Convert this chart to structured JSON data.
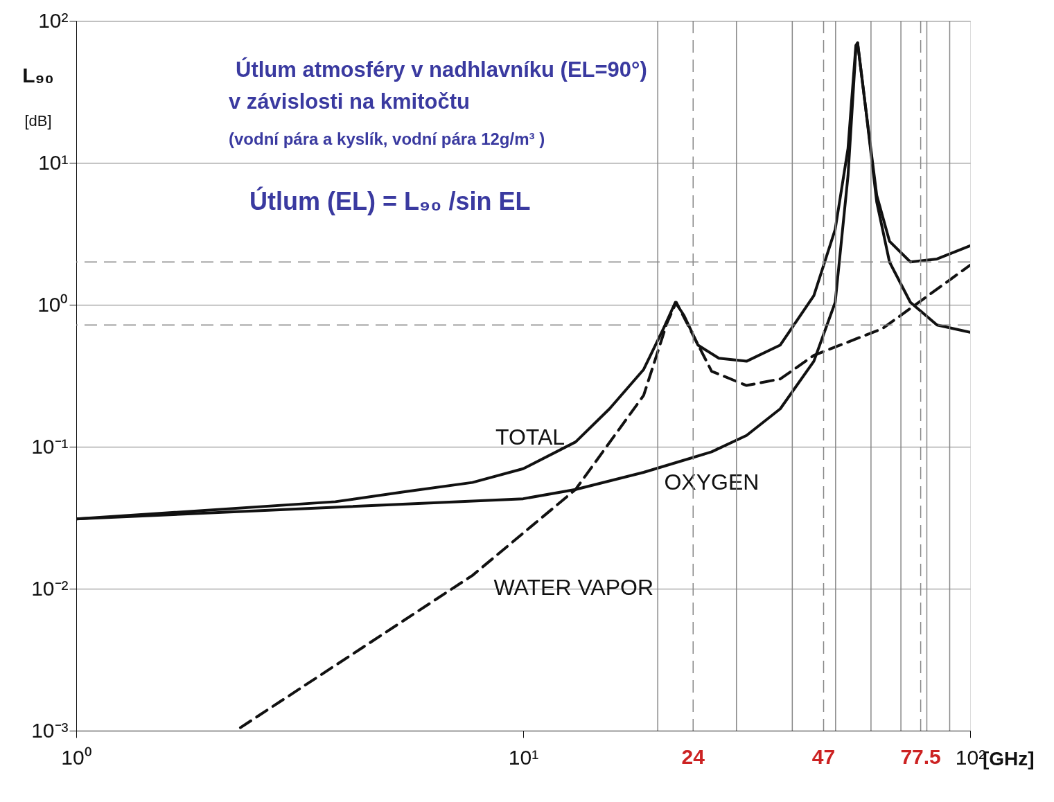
{
  "chart_data": {
    "type": "line",
    "title": "Útlum atmosféry v nadhlavníku (EL=90°) v závislosti na kmitočtu",
    "subtitle": "(vodní pára a kyslík, vodní pára 12g/m³ )",
    "xlabel": "[GHz]",
    "ylabel": "L₉₀ [dB]",
    "log": "xy",
    "grid": "y",
    "xlim": [
      1,
      100
    ],
    "ylim": [
      0.001,
      100
    ],
    "xticks": [
      {
        "value": 1,
        "label": "10⁰"
      },
      {
        "value": 10,
        "label": "10¹"
      },
      {
        "value": 100,
        "label": "10²"
      }
    ],
    "yticks": [
      {
        "value": 0.001,
        "label": "10⁻³"
      },
      {
        "value": 0.01,
        "label": "10⁻²"
      },
      {
        "value": 0.1,
        "label": "10⁻¹"
      },
      {
        "value": 1,
        "label": "10⁰"
      },
      {
        "value": 10,
        "label": "10¹"
      },
      {
        "value": 100,
        "label": "10²"
      }
    ],
    "series": [
      {
        "name": "OXYGEN",
        "color": "#111111",
        "line_style": "solid",
        "x": [
          1,
          10,
          13.1,
          18.6,
          26.4,
          31.6,
          37.6,
          44.7,
          49.9,
          53.3,
          55.5,
          56,
          58.4,
          61.8,
          66,
          73.5,
          84.3,
          100
        ],
        "values": [
          0.031,
          0.043,
          0.05,
          0.066,
          0.092,
          0.12,
          0.185,
          0.4,
          1.04,
          8.1,
          63,
          70,
          24,
          5.3,
          2.0,
          1.04,
          0.72,
          0.64
        ]
      },
      {
        "name": "TOTAL",
        "color": "#111111",
        "line_style": "solid",
        "x": [
          1,
          3.8,
          5.4,
          7.7,
          10,
          13.1,
          15.6,
          18.6,
          20.6,
          21.9,
          22.9,
          24.6,
          27.4,
          31.6,
          37.6,
          44.7,
          49.9,
          53.3,
          55.5,
          56,
          58.4,
          61.8,
          66,
          73.5,
          84.3,
          100
        ],
        "values": [
          0.031,
          0.041,
          0.048,
          0.056,
          0.07,
          0.108,
          0.185,
          0.35,
          0.68,
          1.04,
          0.84,
          0.52,
          0.42,
          0.4,
          0.52,
          1.16,
          3.4,
          12.6,
          67,
          70,
          24,
          5.9,
          2.8,
          2.0,
          2.1,
          2.6
        ]
      },
      {
        "name": "WATER VAPOR",
        "color": "#111111",
        "line_style": "dashed",
        "x": [
          2.33,
          7.7,
          13.1,
          18.6,
          21,
          22,
          26.4,
          31.6,
          37.6,
          44.7,
          63.7,
          100
        ],
        "values": [
          0.00105,
          0.0124,
          0.05,
          0.23,
          0.75,
          1.04,
          0.34,
          0.27,
          0.3,
          0.44,
          0.68,
          1.9
        ]
      }
    ],
    "ref_lines": [
      {
        "axis": "x",
        "value": 24,
        "label": "24",
        "line_style": "dashed"
      },
      {
        "axis": "x",
        "value": 47,
        "label": "47",
        "line_style": "dashed"
      },
      {
        "axis": "x",
        "value": 77.5,
        "label": "77.5",
        "line_style": "dashed"
      },
      {
        "axis": "x",
        "value": 20
      },
      {
        "axis": "x",
        "value": 30
      },
      {
        "axis": "x",
        "value": 40
      },
      {
        "axis": "x",
        "value": 50
      },
      {
        "axis": "x",
        "value": 60
      },
      {
        "axis": "x",
        "value": 70
      },
      {
        "axis": "x",
        "value": 80
      },
      {
        "axis": "x",
        "value": 90
      },
      {
        "axis": "y",
        "value": 2,
        "line_style": "dashed"
      },
      {
        "axis": "y",
        "value": 0.72,
        "line_style": "dashed"
      }
    ],
    "annotations": [
      "Útlum (EL) = L₉₀ /sin EL"
    ]
  }
}
